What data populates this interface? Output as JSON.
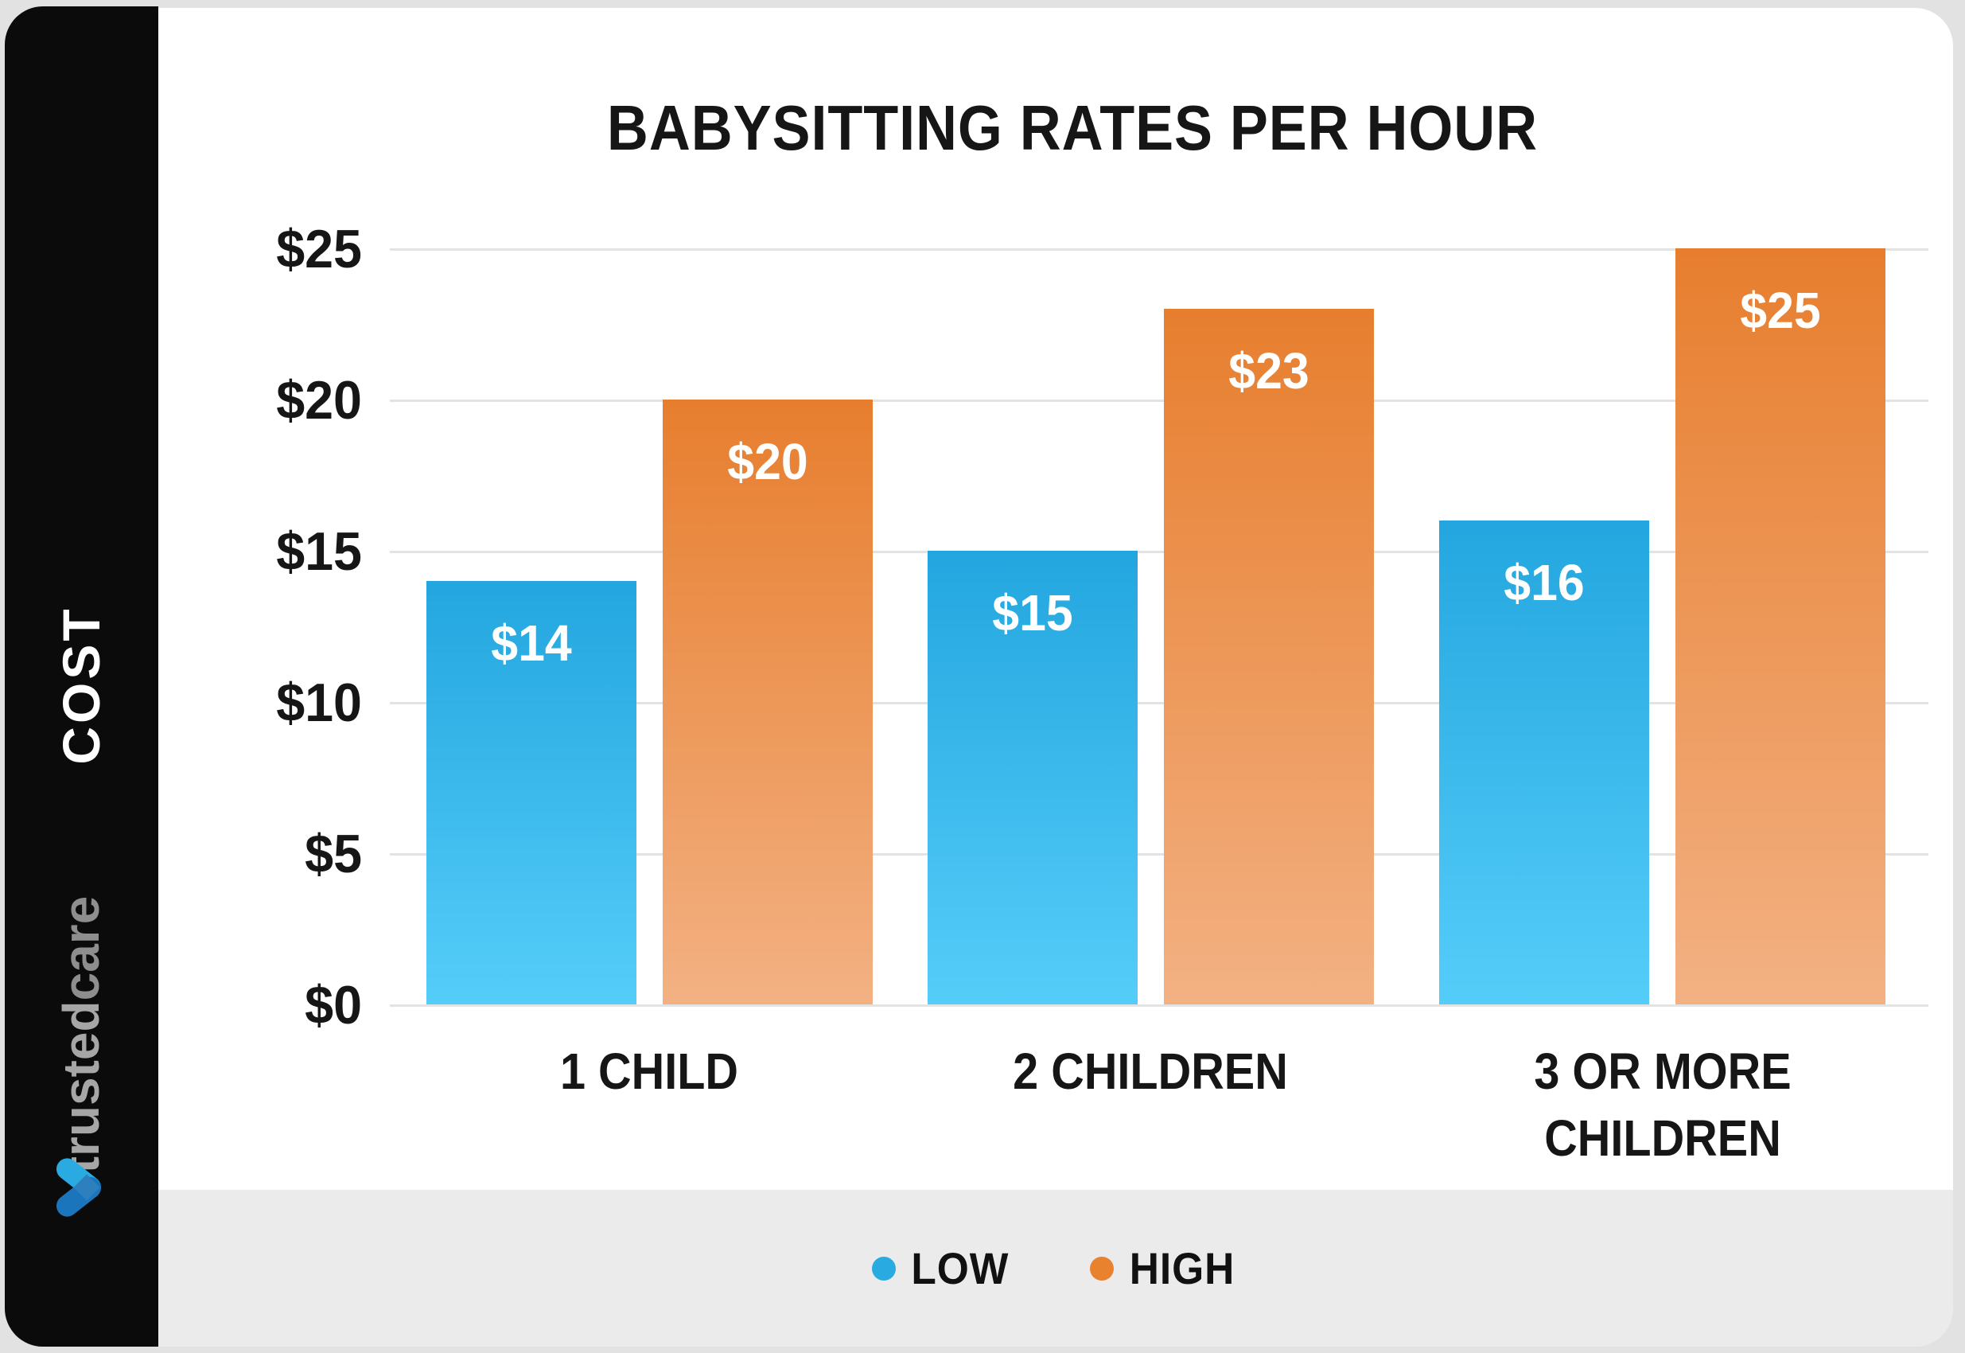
{
  "page": {
    "background": "#E2E2E2",
    "card_color": "#FFFFFF",
    "footer_color": "#EBEBEB"
  },
  "sidebar": {
    "cost_label": "COST",
    "brand": {
      "part1": "trusted",
      "part2": "care"
    },
    "colors": {
      "bg": "#0B0B0B",
      "logo_light_blue": "#29ABE2",
      "logo_dark_blue": "#1B75BC",
      "logo_overlap_blue": "#2D7FBE"
    }
  },
  "chart_data": {
    "type": "bar",
    "title": "BABYSITTING RATES PER HOUR",
    "xlabel": "",
    "ylabel": "COST",
    "categories": [
      "1 CHILD",
      "2 CHILDREN",
      "3 OR MORE\nCHILDREN"
    ],
    "series": [
      {
        "name": "LOW",
        "values": [
          14,
          15,
          16
        ],
        "labels": [
          "$14",
          "$15",
          "$16"
        ],
        "color_top": "#23A6DF",
        "color_bottom": "#55CDF9",
        "legend_dot": "#29ABE2"
      },
      {
        "name": "HIGH",
        "values": [
          20,
          23,
          25
        ],
        "labels": [
          "$20",
          "$23",
          "$25"
        ],
        "color_top": "#E77E2E",
        "color_bottom": "#F3B183",
        "legend_dot": "#E8822F"
      }
    ],
    "y_ticks": [
      "$25",
      "$20",
      "$15",
      "$10",
      "$5",
      "$0"
    ],
    "ylim": [
      0,
      25
    ],
    "grid": true,
    "legend_position": "bottom",
    "value_prefix": "$",
    "gridline_color": "#E3E3E3"
  }
}
